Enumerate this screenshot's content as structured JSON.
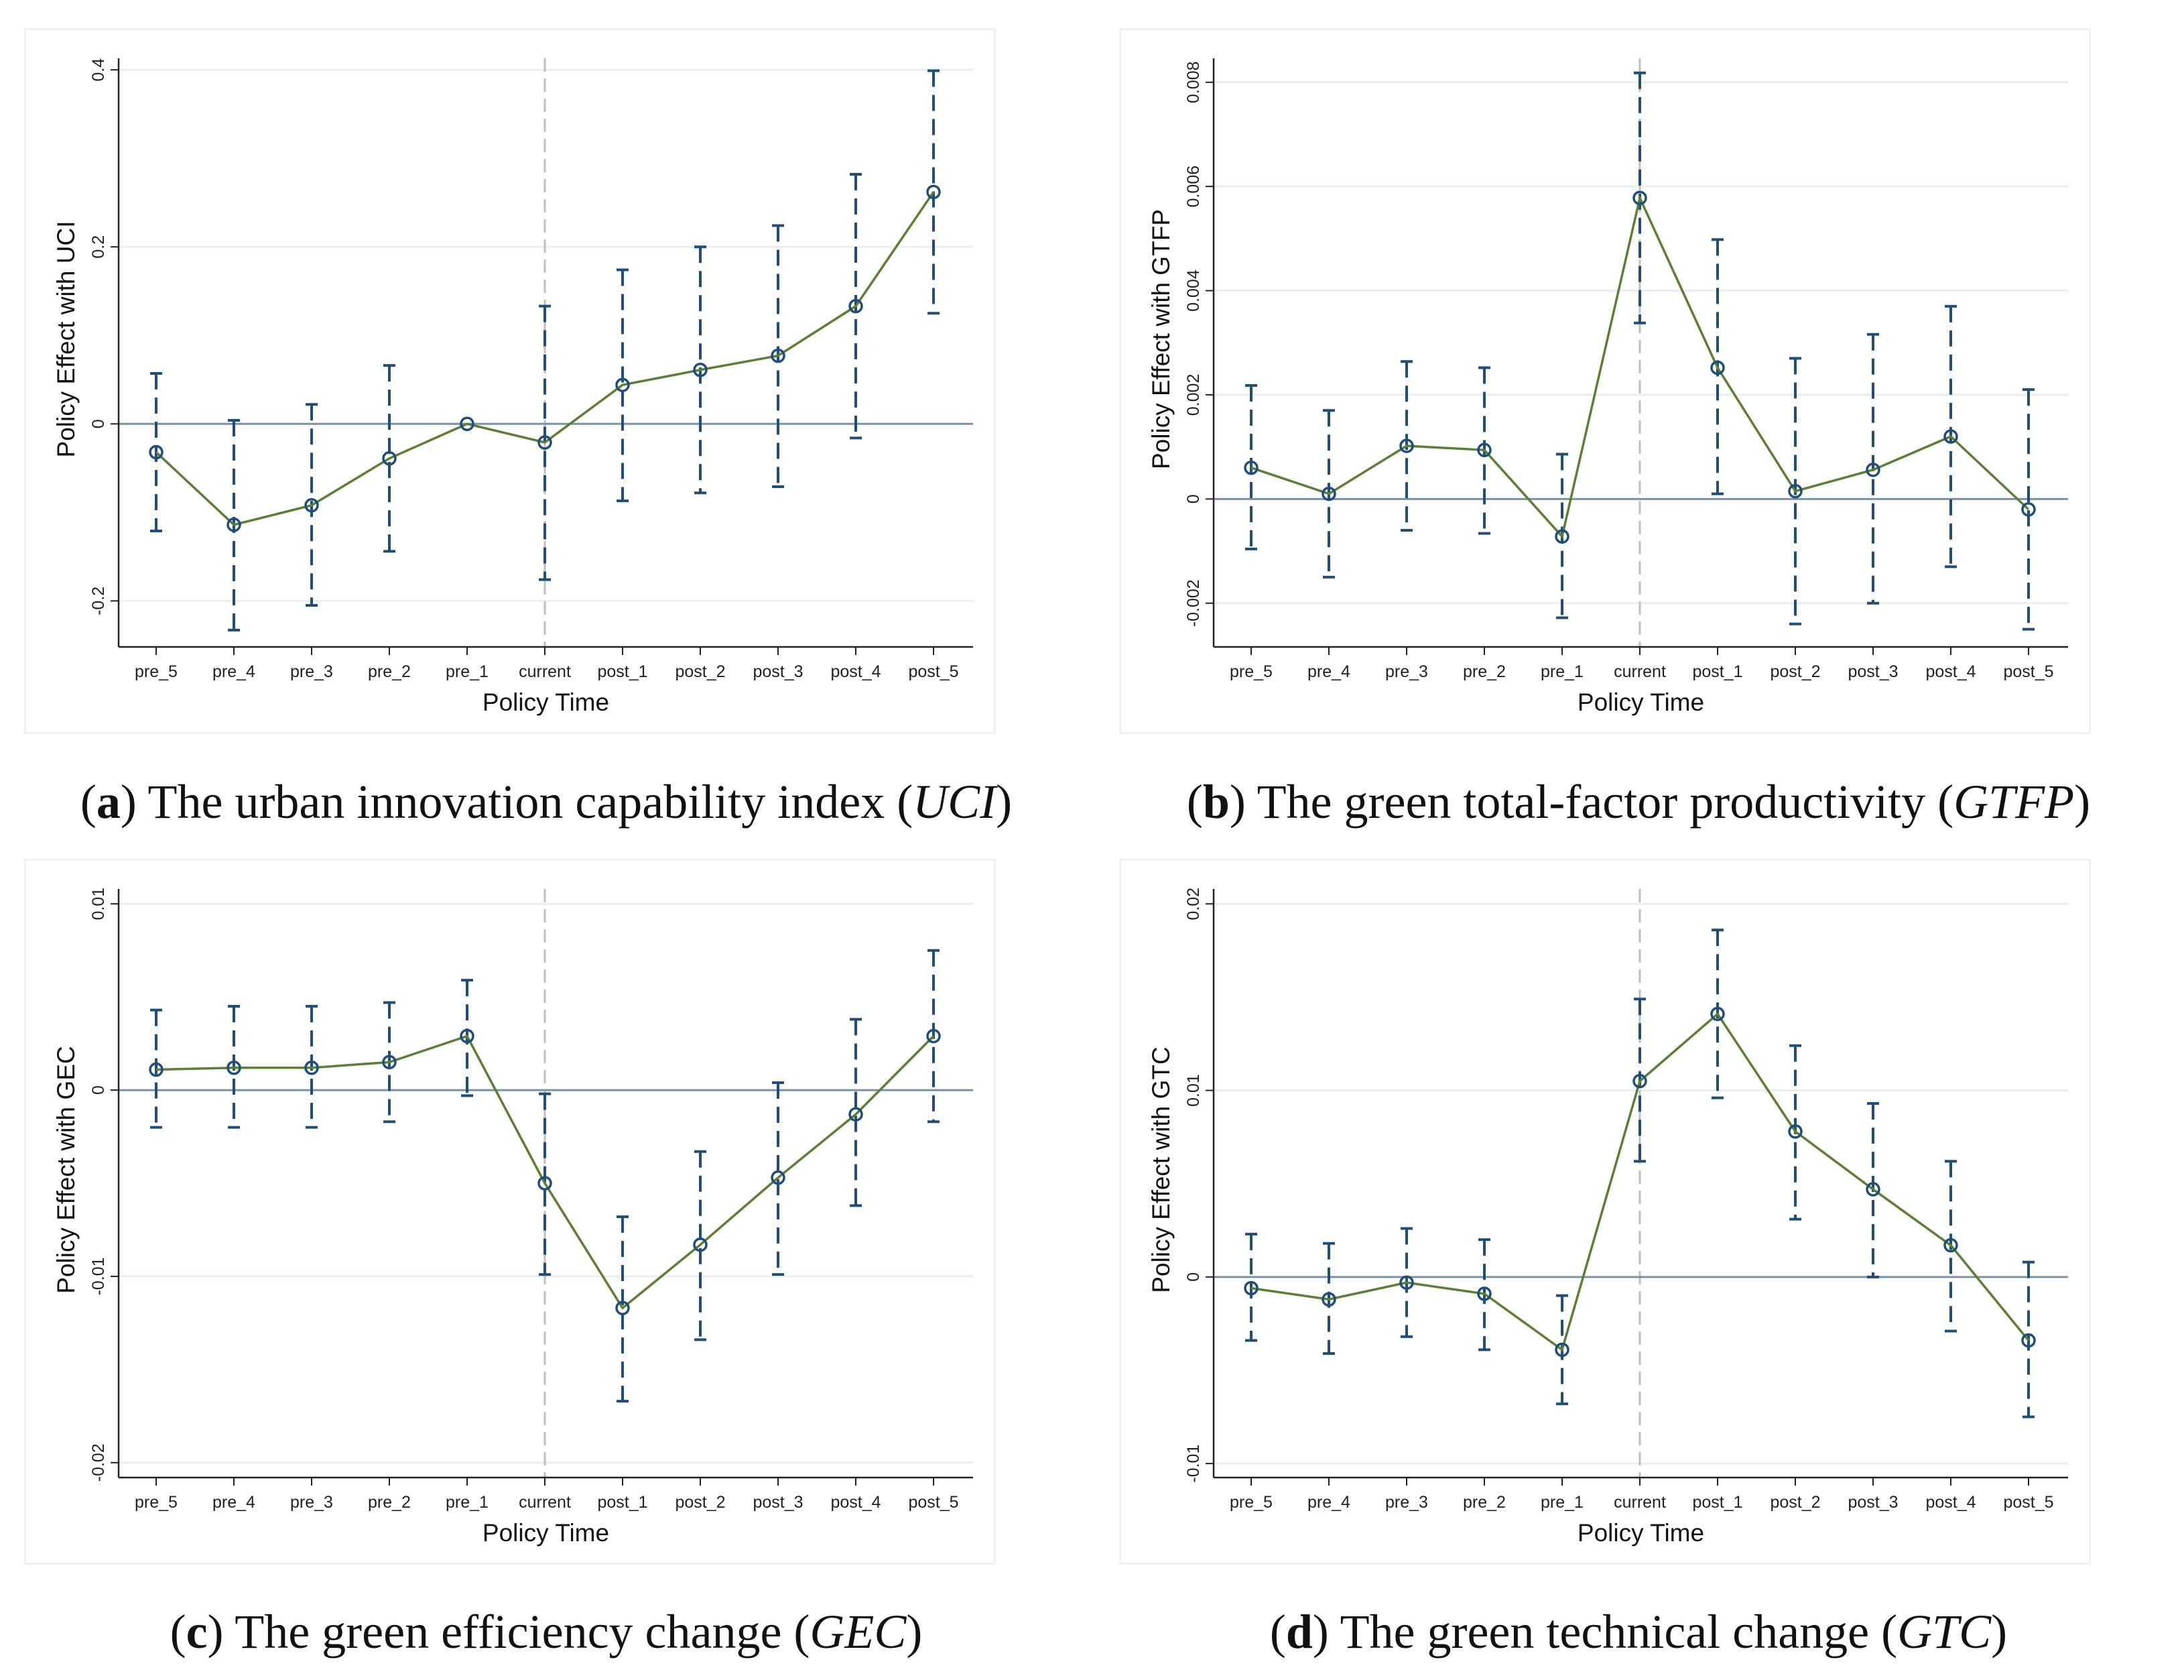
{
  "chart_data": [
    {
      "id": "a",
      "type": "line",
      "caption": {
        "letter": "a",
        "text": "The urban innovation capability index",
        "abbr": "UCI"
      },
      "xlabel": "Policy Time",
      "ylabel": "Policy Effect with UCI",
      "categories": [
        "pre_5",
        "pre_4",
        "pre_3",
        "pre_2",
        "pre_1",
        "current",
        "post_1",
        "post_2",
        "post_3",
        "post_4",
        "post_5"
      ],
      "values": [
        -0.032,
        -0.114,
        -0.092,
        -0.039,
        0,
        -0.021,
        0.044,
        0.061,
        0.077,
        0.133,
        0.262
      ],
      "ci_low": [
        -0.121,
        -0.233,
        -0.205,
        -0.144,
        0,
        -0.176,
        -0.087,
        -0.078,
        -0.071,
        -0.016,
        0.125
      ],
      "ci_high": [
        0.057,
        0.004,
        0.022,
        0.066,
        0,
        0.133,
        0.174,
        0.2,
        0.224,
        0.282,
        0.399
      ],
      "yticks": [
        -0.2,
        0,
        0.2,
        0.4
      ],
      "ytick_labels": [
        "-0.2",
        "0",
        "0.2",
        "0.4"
      ],
      "ylim": [
        -0.252,
        0.413
      ],
      "grid": true,
      "reference_line_x": "current"
    },
    {
      "id": "b",
      "type": "line",
      "caption": {
        "letter": "b",
        "text": "The green total-factor productivity",
        "abbr": "GTFP"
      },
      "xlabel": "Policy Time",
      "ylabel": "Policy Effect with GTFP",
      "categories": [
        "pre_5",
        "pre_4",
        "pre_3",
        "pre_2",
        "pre_1",
        "current",
        "post_1",
        "post_2",
        "post_3",
        "post_4",
        "post_5"
      ],
      "values": [
        0.0006,
        0.0001,
        0.00102,
        0.00094,
        -0.00072,
        0.00578,
        0.00252,
        0.00015,
        0.00056,
        0.0012,
        -0.0002
      ],
      "ci_low": [
        -0.00096,
        -0.0015,
        -0.0006,
        -0.00066,
        -0.00228,
        0.00338,
        0.0001,
        -0.0024,
        -0.002,
        -0.0013,
        -0.0025
      ],
      "ci_high": [
        0.00218,
        0.0017,
        0.00264,
        0.00252,
        0.00086,
        0.00818,
        0.00498,
        0.0027,
        0.00316,
        0.0037,
        0.0021
      ],
      "yticks": [
        -0.002,
        0,
        0.002,
        0.004,
        0.006,
        0.008
      ],
      "ytick_labels": [
        "-0.002",
        "0",
        "0.002",
        "0.004",
        "0.006",
        "0.008"
      ],
      "ylim": [
        -0.00284,
        0.00846
      ],
      "grid": true,
      "reference_line_x": "current"
    },
    {
      "id": "c",
      "type": "line",
      "caption": {
        "letter": "c",
        "text": "The green efficiency change",
        "abbr": "GEC"
      },
      "xlabel": "Policy Time",
      "ylabel": "Policy Effect with GEC",
      "categories": [
        "pre_5",
        "pre_4",
        "pre_3",
        "pre_2",
        "pre_1",
        "current",
        "post_1",
        "post_2",
        "post_3",
        "post_4",
        "post_5"
      ],
      "values": [
        0.0011,
        0.0012,
        0.0012,
        0.0015,
        0.0029,
        -0.005,
        -0.0117,
        -0.0083,
        -0.0047,
        -0.0013,
        0.0029
      ],
      "ci_low": [
        -0.002,
        -0.002,
        -0.002,
        -0.0017,
        -0.0003,
        -0.0099,
        -0.0167,
        -0.0134,
        -0.0099,
        -0.0062,
        -0.0017
      ],
      "ci_high": [
        0.0043,
        0.0045,
        0.0045,
        0.0047,
        0.0059,
        -0.0002,
        -0.0068,
        -0.0033,
        0.0004,
        0.0038,
        0.0075
      ],
      "yticks": [
        -0.02,
        -0.01,
        0,
        0.01
      ],
      "ytick_labels": [
        "-0.02",
        "-0.01",
        "0",
        "0.01"
      ],
      "ylim": [
        -0.0208,
        0.0108
      ],
      "grid": true,
      "reference_line_x": "current"
    },
    {
      "id": "d",
      "type": "line",
      "caption": {
        "letter": "d",
        "text": "The green technical change",
        "abbr": "GTC"
      },
      "xlabel": "Policy Time",
      "ylabel": "Policy Effect with GTC",
      "categories": [
        "pre_5",
        "pre_4",
        "pre_3",
        "pre_2",
        "pre_1",
        "current",
        "post_1",
        "post_2",
        "post_3",
        "post_4",
        "post_5"
      ],
      "values": [
        -0.0006,
        -0.0012,
        -0.0003,
        -0.0009,
        -0.0039,
        0.0105,
        0.0141,
        0.0078,
        0.0047,
        0.0017,
        -0.0034
      ],
      "ci_low": [
        -0.0034,
        -0.0041,
        -0.0032,
        -0.0039,
        -0.0068,
        0.0062,
        0.0096,
        0.0031,
        0.0,
        -0.0029,
        -0.0075
      ],
      "ci_high": [
        0.0023,
        0.0018,
        0.0026,
        0.002,
        -0.001,
        0.0149,
        0.0186,
        0.0124,
        0.0093,
        0.0062,
        0.0008
      ],
      "yticks": [
        -0.01,
        0,
        0.01,
        0.02
      ],
      "ytick_labels": [
        "-0.01",
        "0",
        "0.01",
        "0.02"
      ],
      "ylim": [
        -0.01075,
        0.0208
      ],
      "grid": true,
      "reference_line_x": "current"
    }
  ],
  "colors": {
    "line": "#5b7f35",
    "ci": "#1f4e79",
    "marker": "#1f4e79",
    "zero_line": "#7a93a8",
    "grid": "#eaeef0",
    "ref_line": "#bfbfbf",
    "axis": "#222222"
  }
}
